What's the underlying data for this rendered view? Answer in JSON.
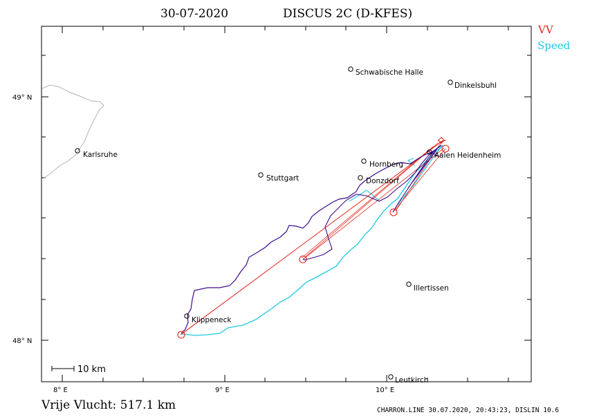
{
  "header": {
    "date": "30-07-2020",
    "glider": "DISCUS 2C (D-KFES)"
  },
  "legend": {
    "vv_label": "VV",
    "speed_label": "Speed",
    "vv_color": "#e2231a",
    "speed_color": "#1ec8e0"
  },
  "map": {
    "lon_labels": [
      "8° E",
      "9° E",
      "10° E"
    ],
    "lat_labels": [
      "49° N",
      "48° N"
    ],
    "scale_label": "10 km",
    "track_color": "#3b0a8c",
    "border_color": "#b4b4b4",
    "towns": [
      {
        "name": "Schwabische Halle"
      },
      {
        "name": "Dinkelsbuhl"
      },
      {
        "name": "Karlsruhe"
      },
      {
        "name": "Hornberg"
      },
      {
        "name": "Aalen Heidenheim"
      },
      {
        "name": "Stuttgart"
      },
      {
        "name": "Donzdorf"
      },
      {
        "name": "Illertissen"
      },
      {
        "name": "Klippeneck"
      },
      {
        "name": "Leutkirch"
      }
    ]
  },
  "footer": {
    "distance_label": "Vrije Vlucht:  517.1 km",
    "credits": "CHARRON.LINE 30.07.2020, 20:43:23, DISLIN 10.6"
  }
}
